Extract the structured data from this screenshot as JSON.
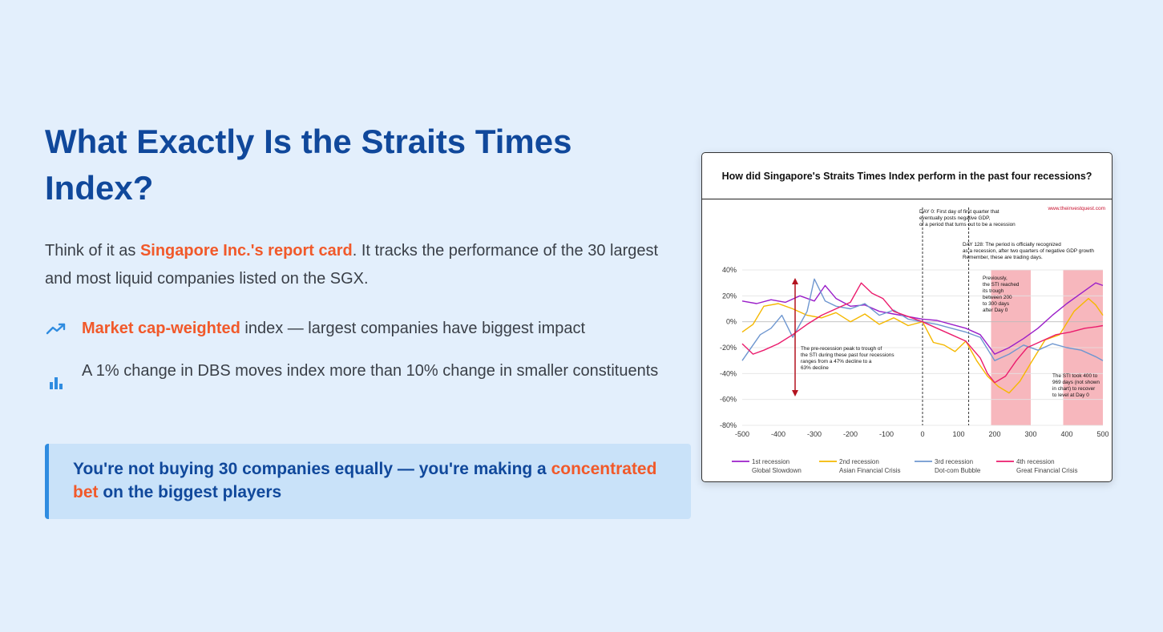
{
  "heading": "What Exactly Is the Straits Times Index?",
  "intro": {
    "before": "Think of it as ",
    "highlight": "Singapore Inc.'s report card",
    "after": ". It tracks the performance of the 30 largest and most liquid companies listed on the SGX."
  },
  "bullets": [
    {
      "icon": "trending-up-icon",
      "highlight": "Market cap-weighted",
      "text": " index — largest companies have biggest impact"
    },
    {
      "icon": "bar-chart-icon",
      "text": "A 1% change in DBS moves index more than 10% change in smaller constituents"
    }
  ],
  "callout": {
    "before": "You're not buying 30 companies equally — you're making a ",
    "highlight": "concentrated bet",
    "after": " on the biggest players"
  },
  "colors": {
    "heading": "#10489b",
    "accent": "#f1592a",
    "background": "#e3effc",
    "callout_bg": "#c9e2f9",
    "callout_border": "#2f8ce0"
  },
  "chart_data": {
    "type": "line",
    "title": "How did Singapore's Straits Times Index perform in the past four recessions?",
    "source": "www.theinvestquest.com",
    "xlim": [
      -500,
      500
    ],
    "ylim": [
      -80,
      40
    ],
    "x_ticks": [
      "-500",
      "-400",
      "-300",
      "-200",
      "-100",
      "0",
      "100",
      "200",
      "300",
      "400",
      "500"
    ],
    "y_ticks": [
      "40%",
      "20%",
      "0%",
      "-20%",
      "-40%",
      "-60%",
      "-80%"
    ],
    "annotations": {
      "day0": [
        "DAY 0: First day of first quarter that",
        "eventually posts negative GDP,",
        "of a period that turns out to be a recession"
      ],
      "day128": [
        "DAY 128: The period is officially recognized",
        "as a recession, after two quarters of negative GDP growth",
        "Remember, these are trading days."
      ],
      "trough": [
        "Previously,",
        "the STI reached",
        "its trough",
        "between 200",
        "to 300 days",
        "after Day 0"
      ],
      "decline": [
        "The pre-recession peak to trough of",
        "the STI during these past four recessions",
        "ranges from a 47% decline to a",
        "63% decline"
      ],
      "recover": [
        "The STI took 400 to",
        "969 days (not shown",
        "in chart) to recover",
        "to level at Day 0"
      ]
    },
    "shaded_ranges": [
      [
        190,
        300
      ],
      [
        390,
        500
      ]
    ],
    "vlines": [
      0,
      128
    ],
    "series": [
      {
        "name": "1st recession",
        "sub": "Global Slowdown",
        "color": "#9b1fc9",
        "x": [
          -500,
          -460,
          -420,
          -380,
          -340,
          -300,
          -270,
          -240,
          -200,
          -160,
          -120,
          -80,
          -40,
          0,
          40,
          80,
          120,
          160,
          200,
          240,
          280,
          320,
          360,
          400,
          440,
          480,
          500
        ],
        "y": [
          16,
          14,
          17,
          15,
          20,
          16,
          28,
          18,
          12,
          13,
          8,
          6,
          4,
          2,
          1,
          -2,
          -5,
          -10,
          -25,
          -20,
          -13,
          -5,
          5,
          14,
          22,
          30,
          28
        ]
      },
      {
        "name": "2nd recession",
        "sub": "Asian Financial Crisis",
        "color": "#f5b800",
        "x": [
          -500,
          -470,
          -440,
          -400,
          -360,
          -320,
          -280,
          -240,
          -200,
          -160,
          -120,
          -80,
          -40,
          0,
          30,
          60,
          90,
          120,
          150,
          180,
          210,
          240,
          270,
          300,
          340,
          380,
          420,
          460,
          480,
          500
        ],
        "y": [
          -8,
          -2,
          12,
          14,
          10,
          5,
          3,
          7,
          0,
          6,
          -2,
          3,
          -3,
          0,
          -16,
          -18,
          -23,
          -15,
          -30,
          -42,
          -50,
          -55,
          -46,
          -32,
          -14,
          -10,
          8,
          18,
          13,
          5
        ]
      },
      {
        "name": "3rd recession",
        "sub": "Dot-com Bubble",
        "color": "#6f97d0",
        "x": [
          -500,
          -480,
          -450,
          -420,
          -390,
          -360,
          -320,
          -300,
          -270,
          -240,
          -200,
          -160,
          -120,
          -80,
          -40,
          0,
          40,
          80,
          120,
          160,
          200,
          240,
          280,
          320,
          360,
          400,
          440,
          480,
          500
        ],
        "y": [
          -30,
          -22,
          -10,
          -5,
          5,
          -12,
          8,
          33,
          16,
          12,
          10,
          14,
          5,
          9,
          2,
          0,
          -2,
          -5,
          -8,
          -12,
          -30,
          -25,
          -18,
          -22,
          -17,
          -20,
          -22,
          -27,
          -30
        ]
      },
      {
        "name": "4th recession",
        "sub": "Great Financial Crisis",
        "color": "#eb1c6d",
        "x": [
          -500,
          -470,
          -440,
          -400,
          -360,
          -320,
          -280,
          -240,
          -200,
          -170,
          -140,
          -110,
          -80,
          -40,
          0,
          40,
          80,
          120,
          160,
          180,
          200,
          230,
          260,
          290,
          330,
          370,
          410,
          450,
          480,
          500
        ],
        "y": [
          -17,
          -25,
          -22,
          -17,
          -10,
          -2,
          5,
          10,
          15,
          30,
          22,
          18,
          8,
          4,
          0,
          -5,
          -10,
          -15,
          -28,
          -40,
          -47,
          -42,
          -30,
          -20,
          -15,
          -10,
          -8,
          -5,
          -4,
          -3
        ]
      }
    ]
  }
}
